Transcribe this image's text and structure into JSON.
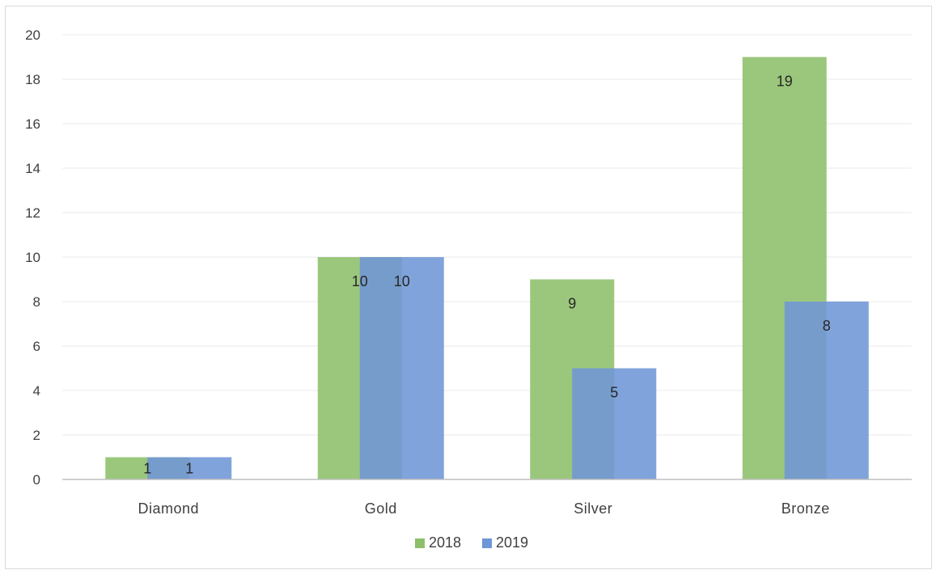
{
  "chart_data": {
    "type": "bar",
    "categories": [
      "Diamond",
      "Gold",
      "Silver",
      "Bronze"
    ],
    "series": [
      {
        "name": "2018",
        "values": [
          1,
          10,
          9,
          19
        ],
        "color": "#8dbf6a"
      },
      {
        "name": "2019",
        "values": [
          1,
          10,
          5,
          8
        ],
        "color": "#6f96d6"
      }
    ],
    "title": "",
    "xlabel": "",
    "ylabel": "",
    "ylim": [
      0,
      20
    ],
    "yticks": [
      0,
      2,
      4,
      6,
      8,
      10,
      12,
      14,
      16,
      18,
      20
    ],
    "grid": true,
    "legend_position": "bottom",
    "data_labels": true
  }
}
